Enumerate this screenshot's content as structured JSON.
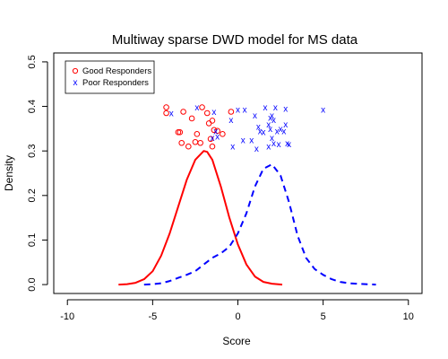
{
  "chart_data": {
    "type": "line",
    "title": "Multiway sparse DWD model for MS data",
    "xlabel": "Score",
    "ylabel": "Density",
    "xlim": [
      -10.8,
      10.8
    ],
    "ylim": [
      -0.02,
      0.52
    ],
    "xticks": [
      -10,
      -5,
      0,
      5,
      10
    ],
    "yticks": [
      0.0,
      0.1,
      0.2,
      0.3,
      0.4,
      0.5
    ],
    "xtick_labels": [
      "-10",
      "-5",
      "0",
      "5",
      "10"
    ],
    "ytick_labels": [
      "0.0",
      "0.1",
      "0.2",
      "0.3",
      "0.4",
      "0.5"
    ],
    "legend_position": "top-left",
    "legend": [
      {
        "label": "Good Responders",
        "color": "#ff0000",
        "marker": "o"
      },
      {
        "label": "Poor Responders",
        "color": "#0000ff",
        "marker": "x"
      }
    ],
    "series": [
      {
        "name": "Good Responders",
        "style": "solid",
        "color": "#ff0000",
        "x": [
          -7.0,
          -6.5,
          -6.0,
          -5.5,
          -5.0,
          -4.5,
          -4.0,
          -3.5,
          -3.0,
          -2.5,
          -2.0,
          -1.8,
          -1.5,
          -1.0,
          -0.5,
          0.0,
          0.5,
          1.0,
          1.5,
          2.0,
          2.6
        ],
        "y": [
          0.0,
          0.001,
          0.004,
          0.012,
          0.03,
          0.065,
          0.115,
          0.175,
          0.235,
          0.28,
          0.3,
          0.298,
          0.28,
          0.22,
          0.15,
          0.09,
          0.045,
          0.018,
          0.006,
          0.002,
          0.0
        ]
      },
      {
        "name": "Poor Responders",
        "style": "dashed",
        "color": "#0000ff",
        "x": [
          -5.5,
          -5.0,
          -4.5,
          -4.0,
          -3.5,
          -3.0,
          -2.5,
          -2.0,
          -1.5,
          -1.0,
          -0.5,
          0.0,
          0.5,
          1.0,
          1.5,
          2.0,
          2.5,
          3.0,
          3.5,
          4.0,
          4.5,
          5.0,
          5.5,
          6.0,
          6.5,
          7.0,
          7.5,
          8.1
        ],
        "y": [
          0.0,
          0.001,
          0.003,
          0.008,
          0.015,
          0.022,
          0.03,
          0.045,
          0.06,
          0.07,
          0.085,
          0.115,
          0.16,
          0.22,
          0.26,
          0.27,
          0.245,
          0.185,
          0.11,
          0.06,
          0.035,
          0.022,
          0.012,
          0.006,
          0.003,
          0.002,
          0.001,
          0.0
        ]
      }
    ],
    "points": [
      {
        "name": "Good Responders",
        "marker": "o",
        "color": "#ff0000",
        "x": [
          -4.2,
          -4.2,
          -3.5,
          -3.4,
          -3.3,
          -3.2,
          -2.9,
          -2.7,
          -2.5,
          -2.4,
          -2.2,
          -2.1,
          -1.8,
          -1.7,
          -1.6,
          -1.5,
          -1.5,
          -1.4,
          -1.2,
          -0.9,
          -0.4
        ],
        "y": [
          0.398,
          0.385,
          0.342,
          0.342,
          0.318,
          0.388,
          0.31,
          0.373,
          0.32,
          0.338,
          0.318,
          0.398,
          0.385,
          0.362,
          0.327,
          0.31,
          0.368,
          0.347,
          0.345,
          0.338,
          0.388
        ]
      },
      {
        "name": "Poor Responders",
        "marker": "x",
        "color": "#0000ff",
        "x": [
          -3.9,
          -2.4,
          -1.5,
          -1.4,
          -1.3,
          -1.2,
          -0.4,
          -0.3,
          0.0,
          0.3,
          0.4,
          0.8,
          1.0,
          1.1,
          1.2,
          1.3,
          1.5,
          1.6,
          1.8,
          1.8,
          1.9,
          1.9,
          2.0,
          2.0,
          2.1,
          2.1,
          2.2,
          2.3,
          2.4,
          2.5,
          2.7,
          2.8,
          2.8,
          2.9,
          3.0,
          5.0
        ],
        "y": [
          0.385,
          0.398,
          0.33,
          0.388,
          0.345,
          0.333,
          0.37,
          0.31,
          0.393,
          0.325,
          0.393,
          0.325,
          0.38,
          0.305,
          0.355,
          0.345,
          0.343,
          0.398,
          0.36,
          0.31,
          0.35,
          0.375,
          0.33,
          0.38,
          0.37,
          0.318,
          0.398,
          0.345,
          0.315,
          0.35,
          0.345,
          0.395,
          0.36,
          0.318,
          0.315,
          0.393
        ]
      }
    ]
  }
}
